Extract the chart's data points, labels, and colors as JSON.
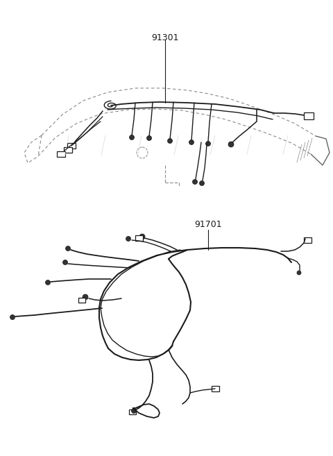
{
  "background_color": "#ffffff",
  "line_color": "#1a1a1a",
  "label_91301": "91301",
  "label_91701": "91701",
  "label_fontsize": 9,
  "label_fontweight": "normal",
  "figsize": [
    4.8,
    6.57
  ],
  "dpi": 100
}
